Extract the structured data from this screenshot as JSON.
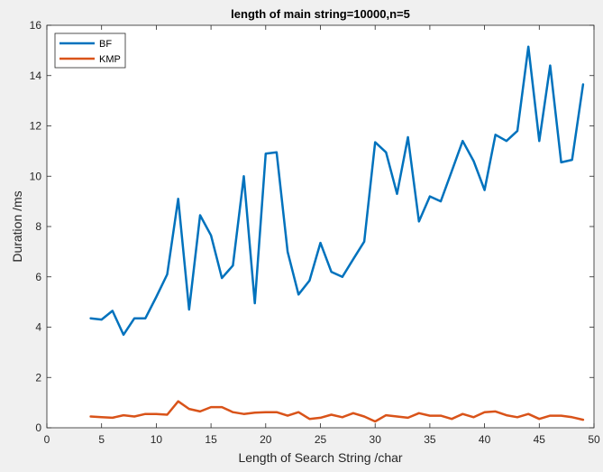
{
  "chart_data": {
    "type": "line",
    "title": "length of main string=10000,n=5",
    "xlabel": "Length of Search String /char",
    "ylabel": "Duration /ms",
    "xlim": [
      0,
      50
    ],
    "ylim": [
      0,
      16
    ],
    "xticks": [
      0,
      5,
      10,
      15,
      20,
      25,
      30,
      35,
      40,
      45,
      50
    ],
    "yticks": [
      0,
      2,
      4,
      6,
      8,
      10,
      12,
      14,
      16
    ],
    "grid": false,
    "legend_position": "top-left",
    "x": [
      4,
      5,
      6,
      7,
      8,
      9,
      10,
      11,
      12,
      13,
      14,
      15,
      16,
      17,
      18,
      19,
      20,
      21,
      22,
      23,
      24,
      25,
      26,
      27,
      28,
      29,
      30,
      31,
      32,
      33,
      34,
      35,
      36,
      37,
      38,
      39,
      40,
      41,
      42,
      43,
      44,
      45,
      46,
      47,
      48,
      49
    ],
    "series": [
      {
        "name": "BF",
        "color": "#0072bd",
        "values": [
          4.35,
          4.3,
          4.65,
          3.7,
          4.35,
          4.35,
          5.2,
          6.1,
          9.1,
          4.7,
          8.45,
          7.65,
          5.95,
          6.45,
          10.0,
          4.95,
          10.9,
          10.95,
          7.0,
          5.3,
          5.85,
          7.35,
          6.2,
          6.0,
          6.7,
          7.4,
          11.35,
          10.95,
          9.3,
          11.55,
          8.2,
          9.2,
          9.0,
          10.2,
          11.4,
          10.6,
          9.45,
          11.65,
          11.4,
          11.8,
          15.15,
          11.4,
          14.4,
          10.55,
          10.65,
          13.65
        ]
      },
      {
        "name": "KMP",
        "color": "#d95319",
        "values": [
          0.45,
          0.42,
          0.4,
          0.5,
          0.45,
          0.55,
          0.55,
          0.52,
          1.05,
          0.75,
          0.65,
          0.82,
          0.82,
          0.62,
          0.55,
          0.6,
          0.62,
          0.62,
          0.48,
          0.62,
          0.35,
          0.4,
          0.52,
          0.42,
          0.58,
          0.45,
          0.25,
          0.5,
          0.45,
          0.4,
          0.58,
          0.48,
          0.48,
          0.35,
          0.55,
          0.42,
          0.62,
          0.65,
          0.5,
          0.42,
          0.55,
          0.35,
          0.48,
          0.48,
          0.42,
          0.32
        ]
      }
    ]
  }
}
